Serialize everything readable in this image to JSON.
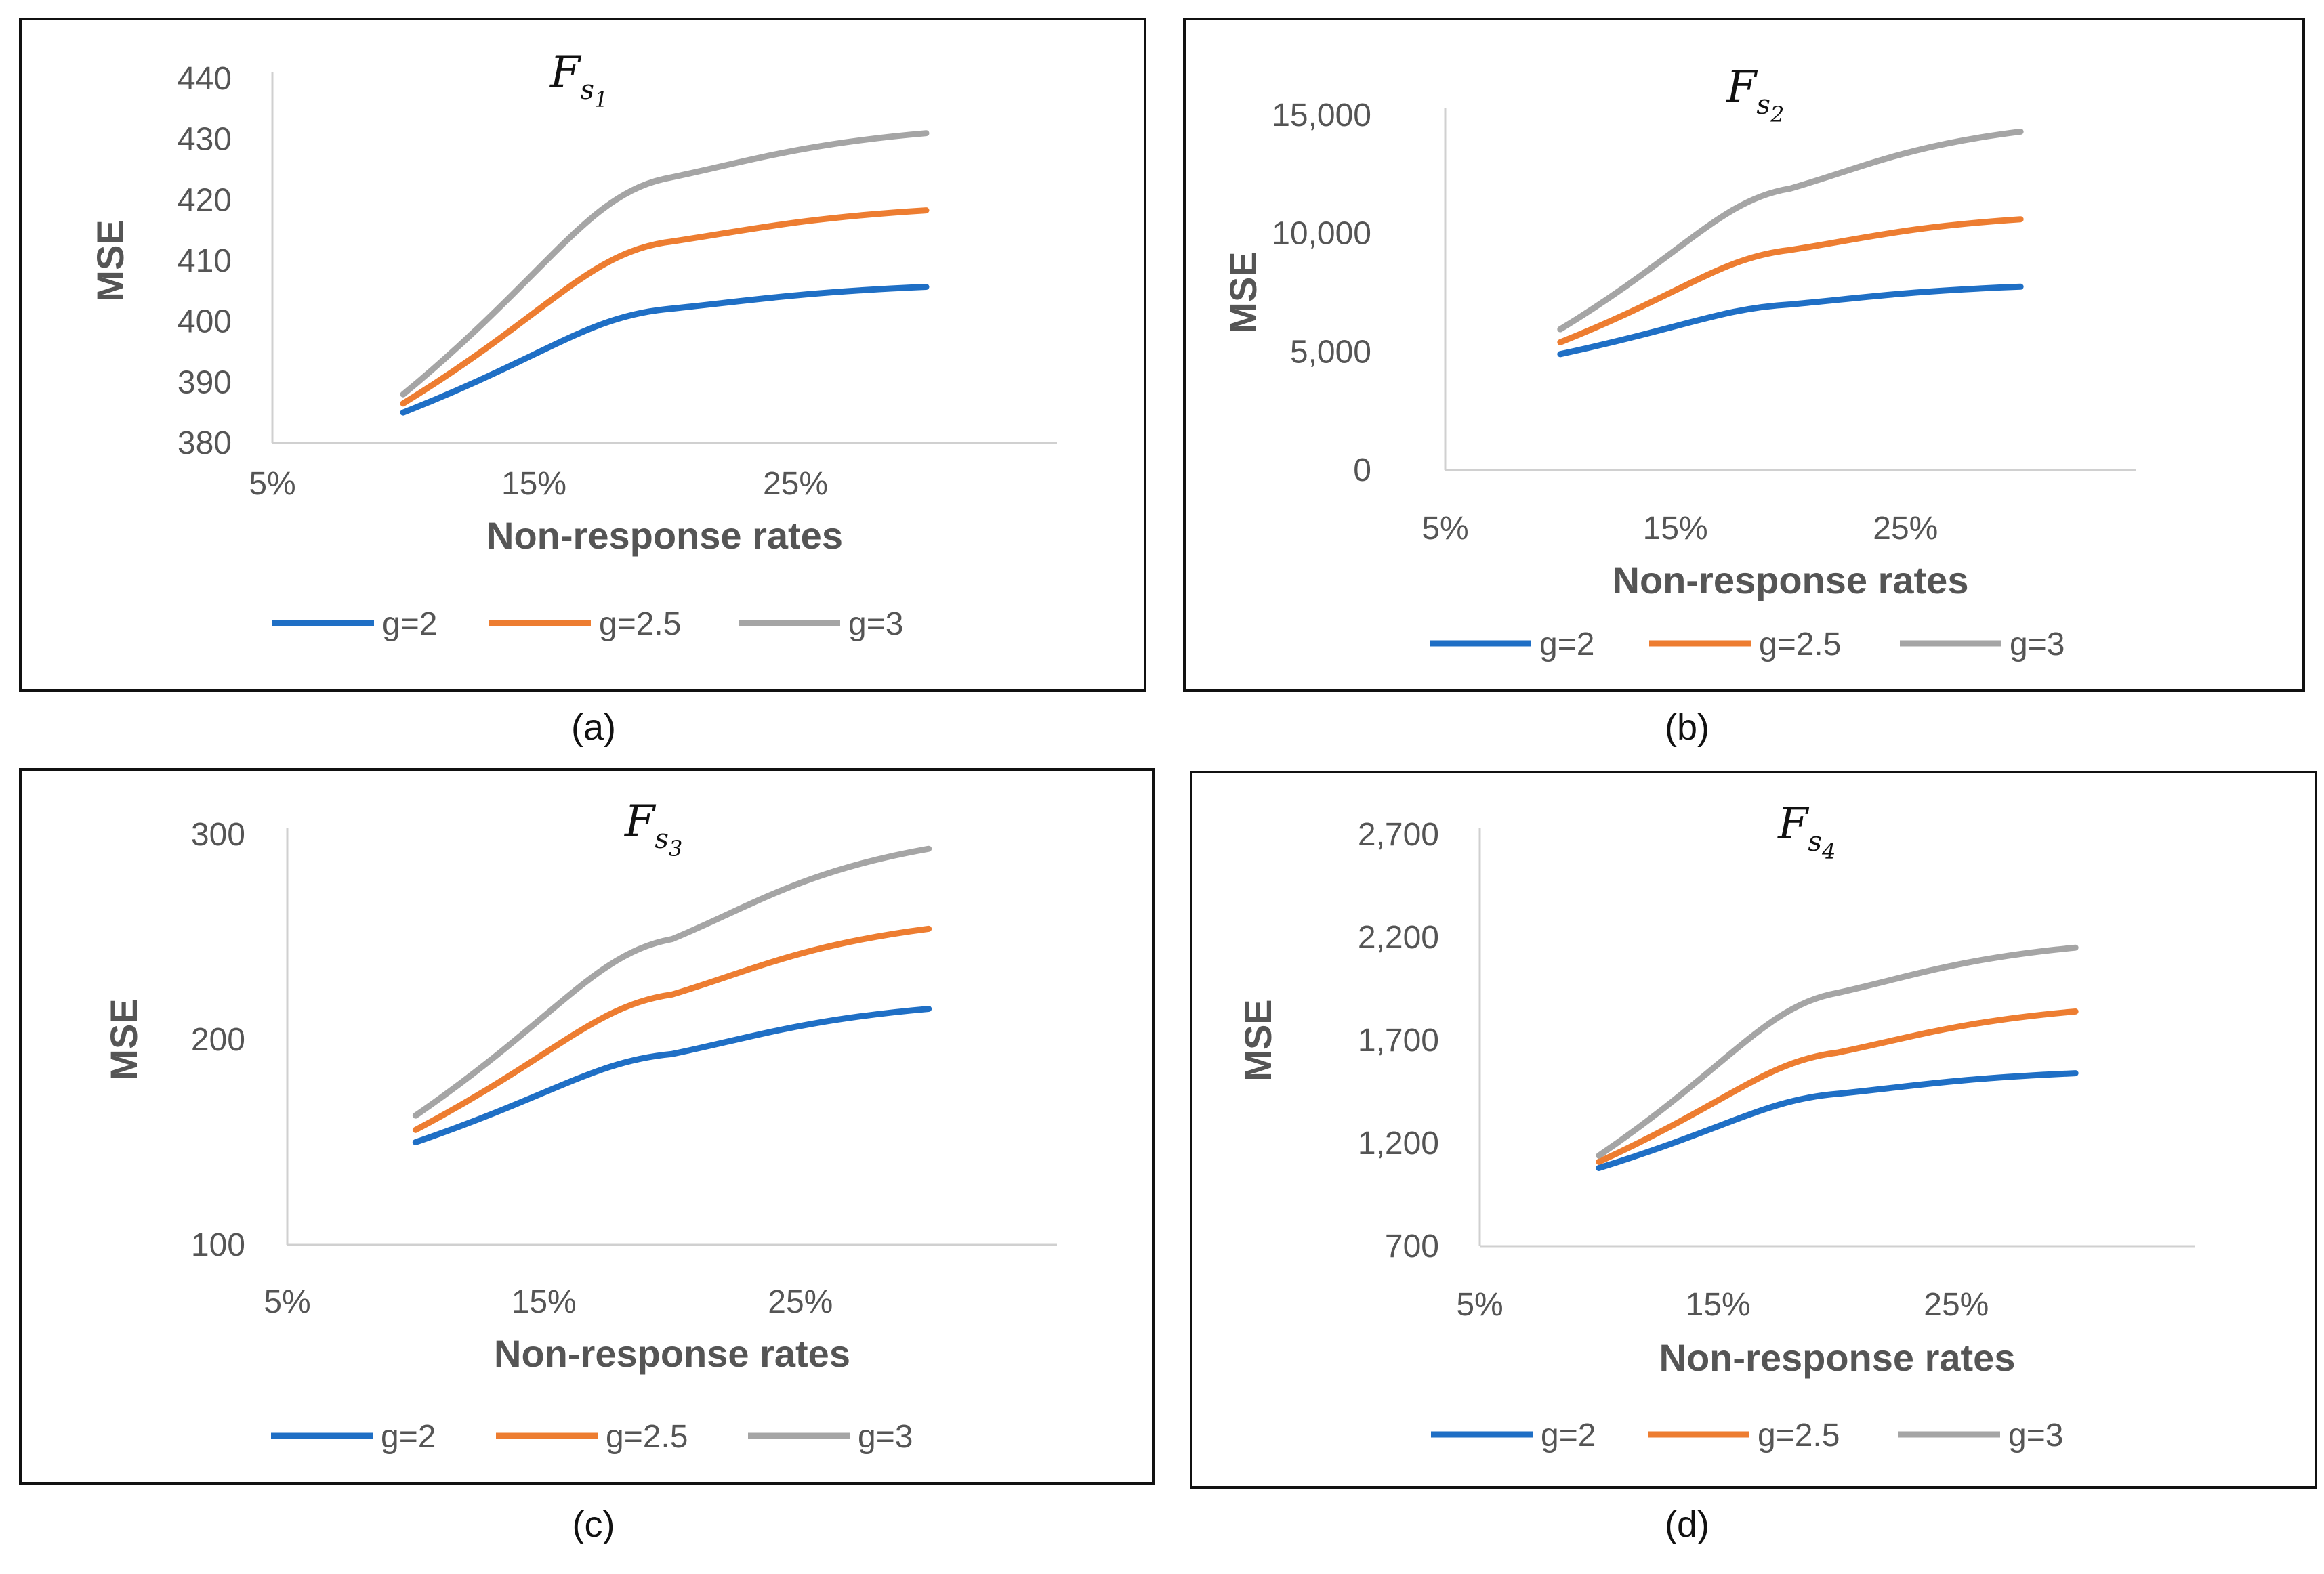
{
  "colors": {
    "g2": "#1F6FC5",
    "g25": "#ED7D31",
    "g3": "#A5A5A5",
    "axis": "#D0D0D0"
  },
  "chart_data": [
    {
      "type": "line",
      "caption": "(a)",
      "title": {
        "main": "F",
        "sub": "s",
        "subsub": "1"
      },
      "xlabel": "Non-response rates",
      "ylabel": "MSE",
      "xticks": [
        "5%",
        "15%",
        "25%"
      ],
      "yticks": [
        "380",
        "390",
        "400",
        "410",
        "420",
        "430",
        "440"
      ],
      "xlim": [
        5,
        35
      ],
      "ylim": [
        380,
        440
      ],
      "x": [
        10,
        20,
        30
      ],
      "series": [
        {
          "name": "g=2",
          "values": [
            385,
            402,
            405.7
          ]
        },
        {
          "name": "g=2.5",
          "values": [
            386.5,
            413,
            418.3
          ]
        },
        {
          "name": "g=3",
          "values": [
            388,
            423.5,
            431
          ]
        }
      ]
    },
    {
      "type": "line",
      "caption": "(b)",
      "title": {
        "main": "F",
        "sub": "s",
        "subsub": "2"
      },
      "xlabel": "Non-response rates",
      "ylabel": "MSE",
      "xticks": [
        "5%",
        "15%",
        "25%"
      ],
      "yticks": [
        "0",
        "5,000",
        "10,000",
        "15,000"
      ],
      "xlim": [
        5,
        35
      ],
      "ylim": [
        0,
        15000
      ],
      "x": [
        10,
        20,
        30
      ],
      "series": [
        {
          "name": "g=2",
          "values": [
            4900,
            7000,
            7750
          ]
        },
        {
          "name": "g=2.5",
          "values": [
            5400,
            9300,
            10600
          ]
        },
        {
          "name": "g=3",
          "values": [
            5950,
            11900,
            14300
          ]
        }
      ]
    },
    {
      "type": "line",
      "caption": "(c)",
      "title": {
        "main": "F",
        "sub": "s",
        "subsub": "3"
      },
      "xlabel": "Non-response rates",
      "ylabel": "MSE",
      "xticks": [
        "5%",
        "15%",
        "25%"
      ],
      "yticks": [
        "100",
        "200",
        "300"
      ],
      "xlim": [
        5,
        35
      ],
      "ylim": [
        100,
        300
      ],
      "x": [
        10,
        20,
        30
      ],
      "series": [
        {
          "name": "g=2",
          "values": [
            150,
            193,
            215
          ]
        },
        {
          "name": "g=2.5",
          "values": [
            156,
            222,
            254
          ]
        },
        {
          "name": "g=3",
          "values": [
            163,
            249,
            293
          ]
        }
      ]
    },
    {
      "type": "line",
      "caption": "(d)",
      "title": {
        "main": "F",
        "sub": "s",
        "subsub": "4"
      },
      "xlabel": "Non-response rates",
      "ylabel": "MSE",
      "xticks": [
        "5%",
        "15%",
        "25%"
      ],
      "yticks": [
        "700",
        "1,200",
        "1,700",
        "2,200",
        "2,700"
      ],
      "xlim": [
        5,
        35
      ],
      "ylim": [
        700,
        2700
      ],
      "x": [
        10,
        20,
        30
      ],
      "series": [
        {
          "name": "g=2",
          "values": [
            1080,
            1440,
            1540
          ]
        },
        {
          "name": "g=2.5",
          "values": [
            1110,
            1640,
            1840
          ]
        },
        {
          "name": "g=3",
          "values": [
            1140,
            1930,
            2150
          ]
        }
      ]
    }
  ]
}
